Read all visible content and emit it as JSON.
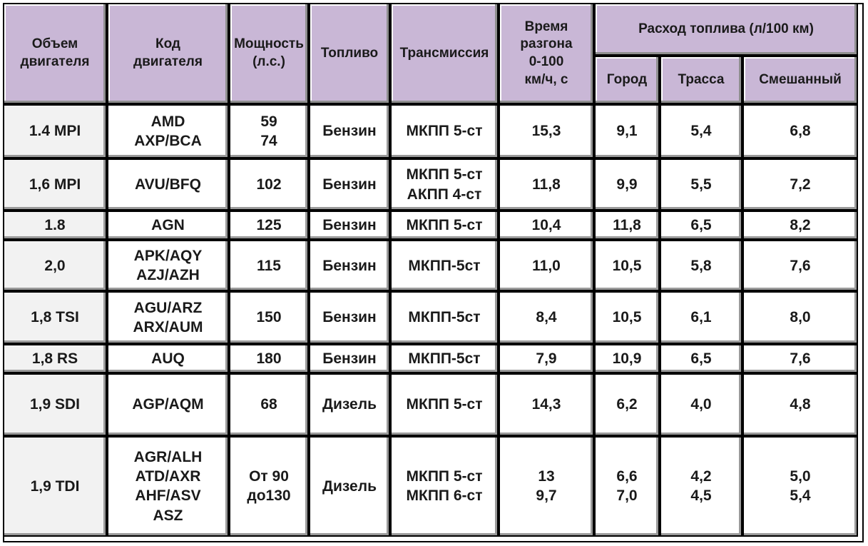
{
  "headers": {
    "engine_volume": [
      "Объем",
      "двигателя"
    ],
    "engine_code": [
      "Код",
      "двигателя"
    ],
    "power": [
      "Мощность",
      "(л.с.)"
    ],
    "fuel": "Топливо",
    "transmission": "Трансмиссия",
    "accel": [
      "Время",
      "разгона",
      "0-100",
      "км/ч, с"
    ],
    "consumption": "Расход топлива (л/100 км)",
    "city": "Город",
    "highway": "Трасса",
    "mixed": "Смешанный"
  },
  "rows": [
    {
      "volume": "1.4 MPI",
      "code": [
        "AMD",
        "AXP/BCA"
      ],
      "power": [
        "59",
        "74"
      ],
      "fuel": "Бензин",
      "trans": [
        "МКПП 5-ст"
      ],
      "accel": [
        "15,3"
      ],
      "city": [
        "9,1"
      ],
      "highway": [
        "5,4"
      ],
      "mixed": [
        "6,8"
      ]
    },
    {
      "volume": "1,6 MPI",
      "code": [
        "AVU/BFQ"
      ],
      "power": [
        "102"
      ],
      "fuel": "Бензин",
      "trans": [
        "МКПП 5-ст",
        "АКПП 4-ст"
      ],
      "accel": [
        "11,8"
      ],
      "city": [
        "9,9"
      ],
      "highway": [
        "5,5"
      ],
      "mixed": [
        "7,2"
      ]
    },
    {
      "volume": "1.8",
      "code": [
        "AGN"
      ],
      "power": [
        "125"
      ],
      "fuel": "Бензин",
      "trans": [
        "МКПП 5-ст"
      ],
      "accel": [
        "10,4"
      ],
      "city": [
        "11,8"
      ],
      "highway": [
        "6,5"
      ],
      "mixed": [
        "8,2"
      ]
    },
    {
      "volume": "2,0",
      "code": [
        "APK/AQY",
        "AZJ/AZH"
      ],
      "power": [
        "115"
      ],
      "fuel": "Бензин",
      "trans": [
        "МКПП-5ст"
      ],
      "accel": [
        "11,0"
      ],
      "city": [
        "10,5"
      ],
      "highway": [
        "5,8"
      ],
      "mixed": [
        "7,6"
      ]
    },
    {
      "volume": "1,8 TSI",
      "code": [
        "AGU/ARZ",
        "ARX/AUM"
      ],
      "power": [
        "150"
      ],
      "fuel": "Бензин",
      "trans": [
        "МКПП-5ст"
      ],
      "accel": [
        "8,4"
      ],
      "city": [
        "10,5"
      ],
      "highway": [
        "6,1"
      ],
      "mixed": [
        "8,0"
      ]
    },
    {
      "volume": "1,8 RS",
      "code": [
        "AUQ"
      ],
      "power": [
        "180"
      ],
      "fuel": "Бензин",
      "trans": [
        "МКПП-5ст"
      ],
      "accel": [
        "7,9"
      ],
      "city": [
        "10,9"
      ],
      "highway": [
        "6,5"
      ],
      "mixed": [
        "7,6"
      ]
    },
    {
      "volume": "1,9 SDI",
      "code": [
        "AGP/AQM"
      ],
      "power": [
        "68"
      ],
      "fuel": "Дизель",
      "trans": [
        "МКПП 5-ст"
      ],
      "accel": [
        "14,3"
      ],
      "city": [
        "6,2"
      ],
      "highway": [
        "4,0"
      ],
      "mixed": [
        "4,8"
      ]
    },
    {
      "volume": "1,9 TDI",
      "code": [
        "AGR/ALH",
        "ATD/AXR",
        "AHF/ASV",
        "ASZ"
      ],
      "power": [
        "От 90",
        "до130"
      ],
      "fuel": "Дизель",
      "trans": [
        "МКПП 5-ст",
        "МКПП 6-ст"
      ],
      "accel": [
        "13",
        "9,7"
      ],
      "city": [
        "6,6",
        "7,0"
      ],
      "highway": [
        "4,2",
        "4,5"
      ],
      "mixed": [
        "5,0",
        "5,4"
      ]
    }
  ]
}
